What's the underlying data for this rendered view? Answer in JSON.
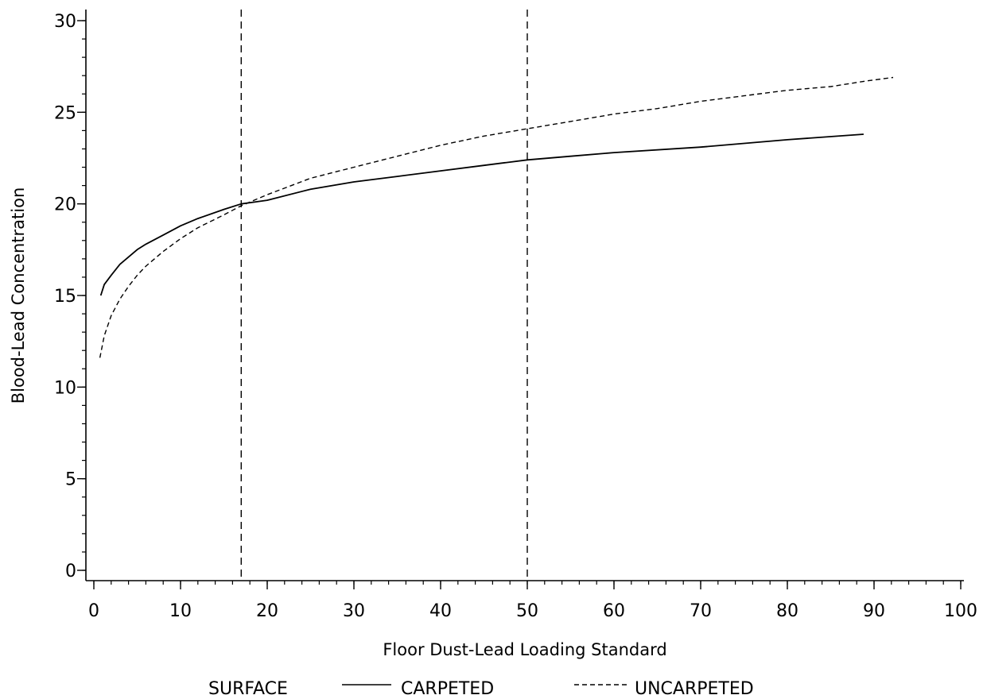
{
  "chart_data": {
    "type": "line",
    "xlabel": "Floor Dust-Lead Loading Standard",
    "ylabel": "Blood-Lead Concentration",
    "xlim": [
      0,
      100
    ],
    "ylim": [
      0,
      30
    ],
    "xticks": [
      0,
      10,
      20,
      30,
      40,
      50,
      60,
      70,
      80,
      90,
      100
    ],
    "yticks": [
      0,
      5,
      10,
      15,
      20,
      25,
      30
    ],
    "x_minor_step": 2,
    "y_minor_step": 1,
    "reference_lines_x": [
      17,
      50
    ],
    "legend": {
      "title": "SURFACE",
      "placement": "bottom"
    },
    "series": [
      {
        "name": "CARPETED",
        "style": "solid",
        "points": [
          [
            0.8,
            15.0
          ],
          [
            1.2,
            15.6
          ],
          [
            2.0,
            16.1
          ],
          [
            3.0,
            16.7
          ],
          [
            4.0,
            17.1
          ],
          [
            5.0,
            17.5
          ],
          [
            6.0,
            17.8
          ],
          [
            8.0,
            18.3
          ],
          [
            10.0,
            18.8
          ],
          [
            12.0,
            19.2
          ],
          [
            15.0,
            19.7
          ],
          [
            17.0,
            20.0
          ],
          [
            20.0,
            20.2
          ],
          [
            25.0,
            20.8
          ],
          [
            30.0,
            21.2
          ],
          [
            35.0,
            21.5
          ],
          [
            40.0,
            21.8
          ],
          [
            45.0,
            22.1
          ],
          [
            50.0,
            22.4
          ],
          [
            55.0,
            22.6
          ],
          [
            60.0,
            22.8
          ],
          [
            70.0,
            23.1
          ],
          [
            80.0,
            23.5
          ],
          [
            88.8,
            23.8
          ]
        ]
      },
      {
        "name": "UNCARPETED",
        "style": "dashed",
        "points": [
          [
            0.7,
            11.6
          ],
          [
            1.2,
            12.8
          ],
          [
            2.0,
            13.9
          ],
          [
            3.0,
            14.8
          ],
          [
            4.0,
            15.5
          ],
          [
            5.0,
            16.1
          ],
          [
            6.0,
            16.6
          ],
          [
            8.0,
            17.4
          ],
          [
            10.0,
            18.1
          ],
          [
            12.0,
            18.7
          ],
          [
            15.0,
            19.4
          ],
          [
            17.0,
            19.9
          ],
          [
            20.0,
            20.5
          ],
          [
            25.0,
            21.4
          ],
          [
            30.0,
            22.0
          ],
          [
            35.0,
            22.6
          ],
          [
            40.0,
            23.2
          ],
          [
            45.0,
            23.7
          ],
          [
            50.0,
            24.1
          ],
          [
            55.0,
            24.5
          ],
          [
            60.0,
            24.9
          ],
          [
            65.0,
            25.2
          ],
          [
            70.0,
            25.6
          ],
          [
            75.0,
            25.9
          ],
          [
            80.0,
            26.2
          ],
          [
            85.0,
            26.4
          ],
          [
            89.0,
            26.7
          ],
          [
            92.2,
            26.9
          ]
        ]
      }
    ]
  }
}
